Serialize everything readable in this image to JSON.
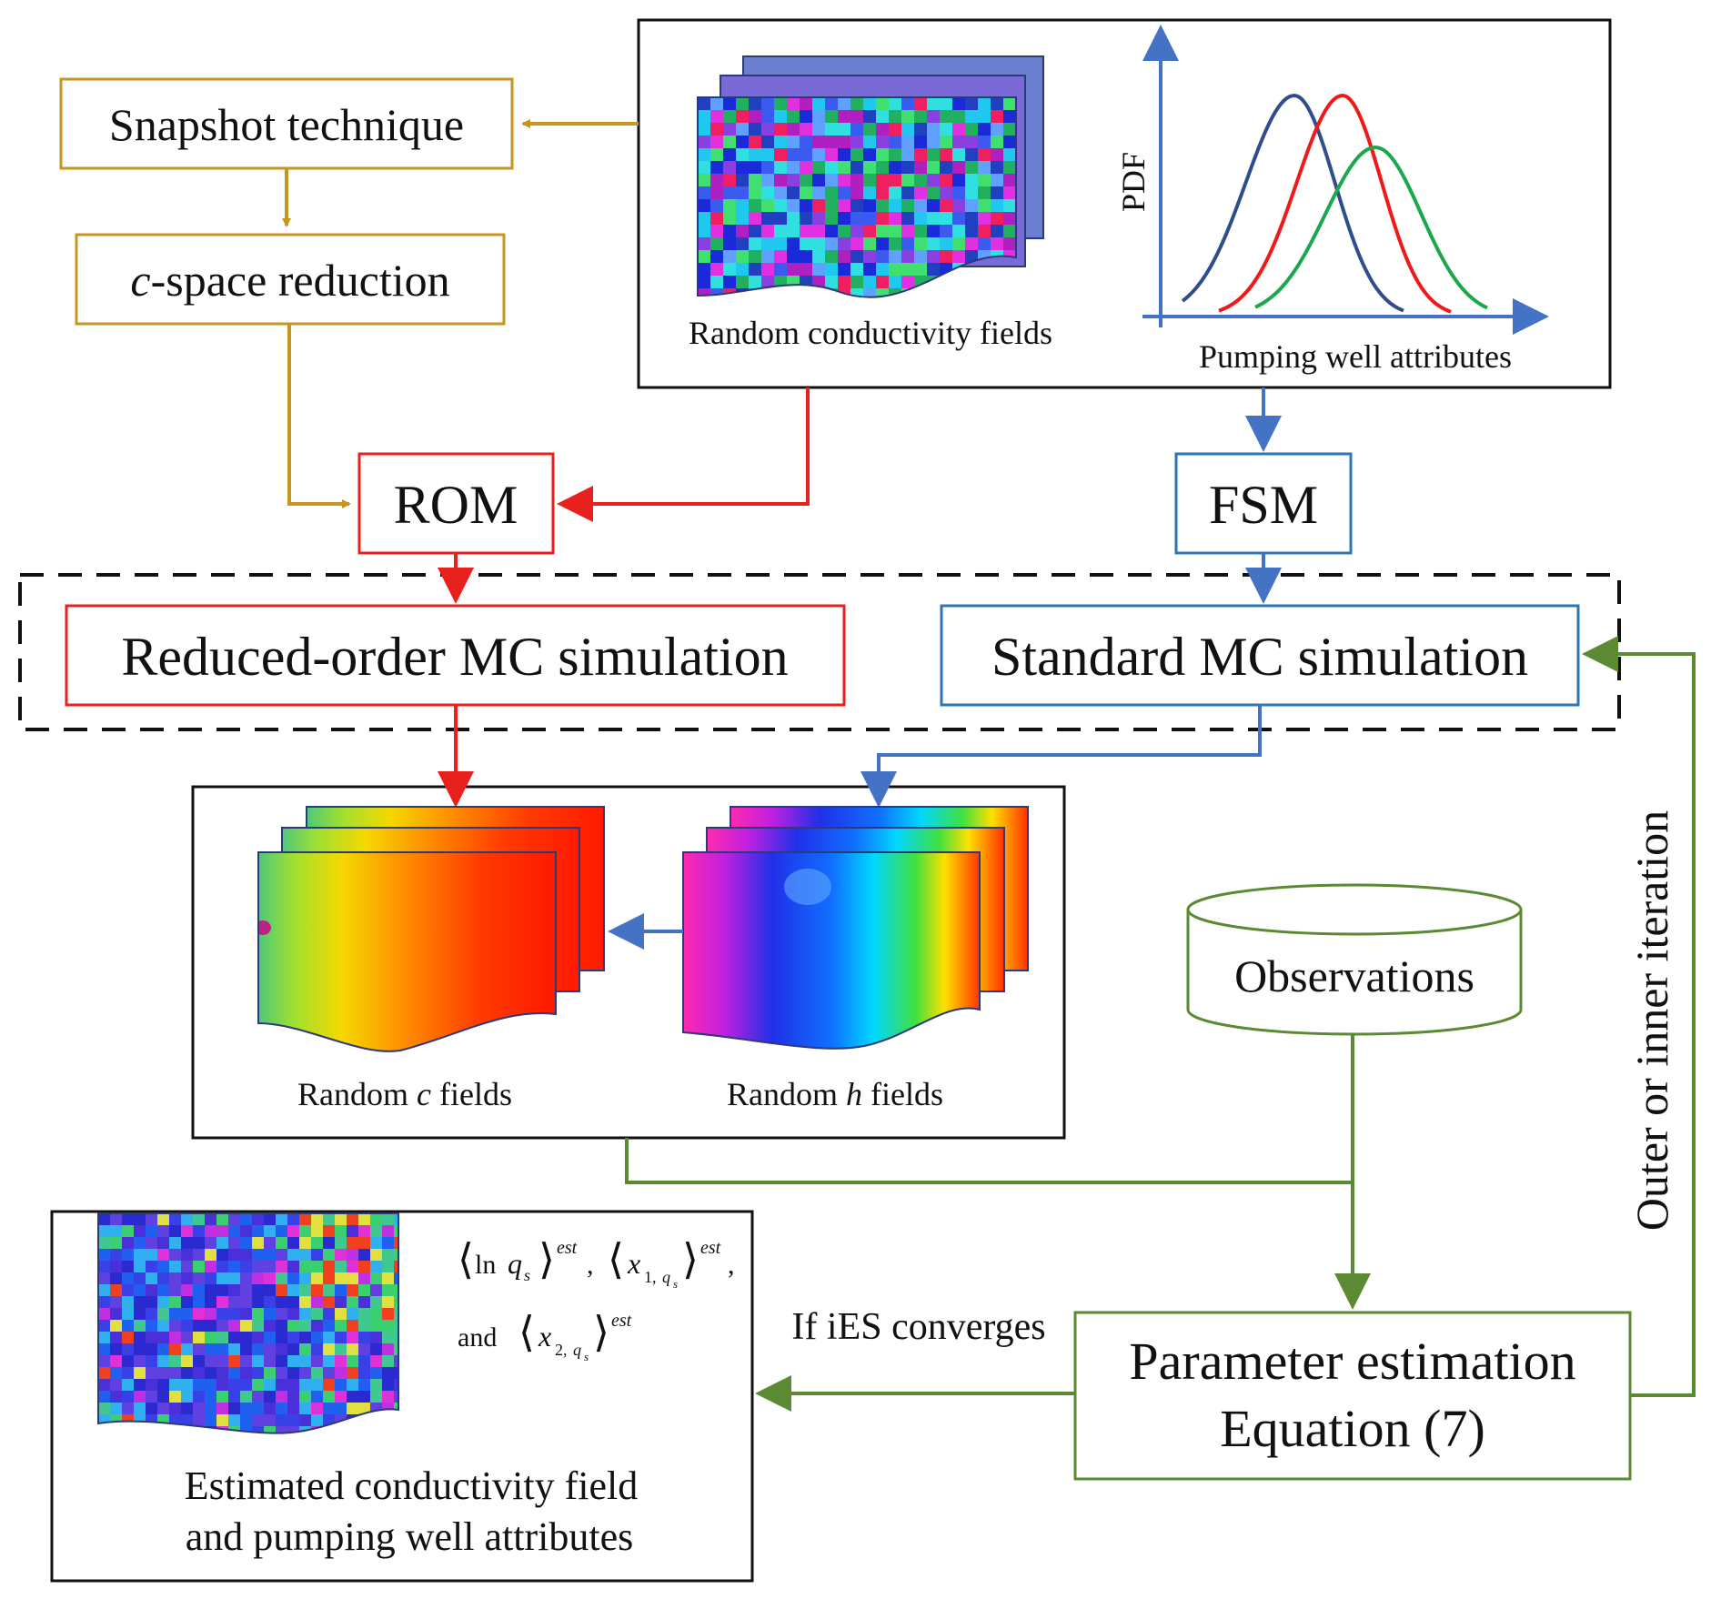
{
  "nodes": {
    "snapshot": {
      "label": "Snapshot technique",
      "color": "#c8961e"
    },
    "cspace": {
      "label_italic": "c",
      "label_rest": "-space reduction",
      "color": "#c8961e"
    },
    "rom": {
      "label": "ROM",
      "color": "#e8201e"
    },
    "fsm": {
      "label": "FSM",
      "color": "#2e75b6"
    },
    "reduced_mc": {
      "label": "Reduced-order MC simulation",
      "color": "#e8201e"
    },
    "standard_mc": {
      "label": "Standard MC simulation",
      "color": "#2e75b6"
    },
    "observations": {
      "label": "Observations",
      "color": "#5b8a32"
    },
    "param_est": {
      "line1": "Parameter estimation",
      "line2": "Equation (7)",
      "color": "#5b8a32"
    }
  },
  "inputs_panel": {
    "fields_caption": "Random conductivity fields",
    "pdf_ylabel": "PDF",
    "pdf_caption": "Pumping well attributes",
    "curve_colors": [
      "#2f4d8a",
      "#f01818",
      "#1aa84a"
    ]
  },
  "fields_panel": {
    "c_caption_pre": "Random ",
    "c_caption_var": "c",
    "c_caption_post": " fields",
    "h_caption_pre": "Random ",
    "h_caption_var": "h",
    "h_caption_post": " fields"
  },
  "output_panel": {
    "math_ln": "ln",
    "math_q": "q",
    "math_s": "s",
    "math_x": "x",
    "math_sub1": "1,",
    "math_sub2": "2,",
    "math_est": "est",
    "math_and": "and",
    "math_comma": ",",
    "caption_line1": "Estimated conductivity field",
    "caption_line2": "and pumping well attributes"
  },
  "edge_labels": {
    "converge": "If iES converges",
    "iteration": "Outer or inner iteration"
  }
}
